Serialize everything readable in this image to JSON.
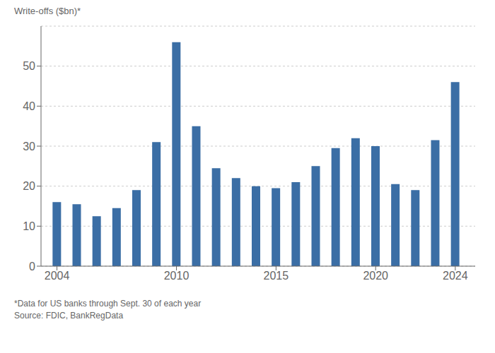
{
  "chart_data": {
    "type": "bar",
    "y_label": "Write-offs ($bn)*",
    "x": [
      2004,
      2005,
      2006,
      2007,
      2008,
      2009,
      2010,
      2011,
      2012,
      2013,
      2014,
      2015,
      2016,
      2017,
      2018,
      2019,
      2020,
      2021,
      2022,
      2023,
      2024
    ],
    "values": [
      16,
      15.5,
      12.5,
      14.5,
      19,
      31,
      56,
      35,
      24.5,
      22,
      20,
      19.5,
      21,
      25,
      29.5,
      32,
      30,
      20.5,
      19,
      31.5,
      46
    ],
    "color": "#3b6ea5",
    "xlim": [
      2003.2,
      2025.0
    ],
    "xticks": [
      2004,
      2010,
      2015,
      2020,
      2024
    ],
    "ylim": [
      0,
      60
    ],
    "yticks": [
      0,
      10,
      20,
      30,
      40,
      50
    ],
    "grid": true,
    "annotations": [
      "*Data for US banks through Sept. 30 of each year",
      "Source: FDIC, BankRegData"
    ]
  }
}
